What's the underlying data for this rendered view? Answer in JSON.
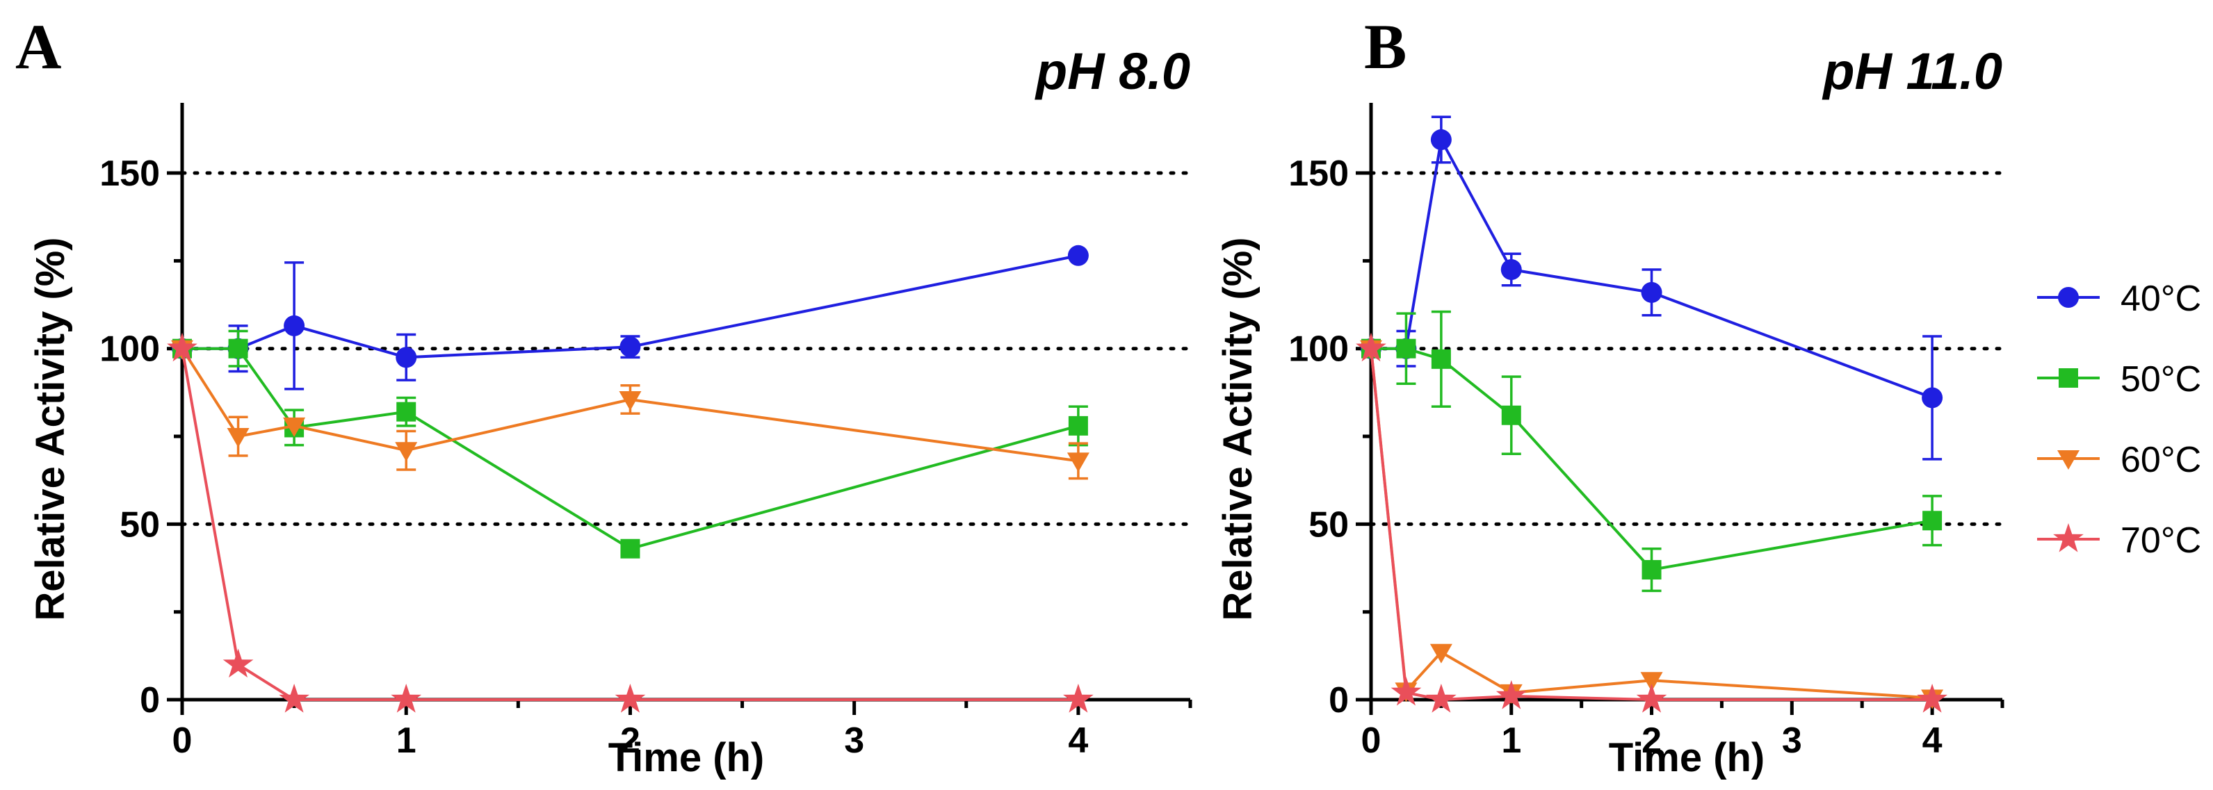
{
  "chart_data": [
    {
      "type": "line",
      "panel_label": "A",
      "title": "pH 8.0",
      "xlabel": "Time (h)",
      "ylabel": "Relative Activity (%)",
      "xlim": [
        0,
        4.5
      ],
      "ylim": [
        0,
        170
      ],
      "xticks": [
        0,
        1,
        2,
        3,
        4
      ],
      "yticks": [
        0,
        50,
        100,
        150
      ],
      "reference_lines": [
        50,
        100,
        150
      ],
      "x": [
        0,
        0.25,
        0.5,
        1,
        2,
        4
      ],
      "series": [
        {
          "name": "40°C",
          "color": "#1f1fe0",
          "marker": "circle",
          "values": [
            100,
            100,
            106.5,
            97.5,
            100.5,
            126.5
          ],
          "errors": [
            0,
            6.5,
            18,
            6.5,
            3,
            0
          ]
        },
        {
          "name": "50°C",
          "color": "#22bb22",
          "marker": "square",
          "values": [
            100,
            100,
            77.5,
            82,
            43,
            78
          ],
          "errors": [
            0,
            5,
            5,
            4,
            0,
            5.5
          ]
        },
        {
          "name": "60°C",
          "color": "#ee7a22",
          "marker": "triangle-down",
          "values": [
            100,
            75,
            78,
            71,
            85.5,
            68
          ],
          "errors": [
            0,
            5.5,
            0,
            5.5,
            4,
            5
          ]
        },
        {
          "name": "70°C",
          "color": "#e94f5a",
          "marker": "star",
          "values": [
            100,
            10,
            0,
            0,
            0,
            0
          ],
          "errors": [
            0,
            0,
            0,
            0,
            0,
            0
          ]
        }
      ]
    },
    {
      "type": "line",
      "panel_label": "B",
      "title": "pH 11.0",
      "xlabel": "Time (h)",
      "ylabel": "Relative Activity (%)",
      "xlim": [
        0,
        4.5
      ],
      "ylim": [
        0,
        170
      ],
      "xticks": [
        0,
        1,
        2,
        3,
        4
      ],
      "yticks": [
        0,
        50,
        100,
        150
      ],
      "reference_lines": [
        50,
        100,
        150
      ],
      "x": [
        0,
        0.25,
        0.5,
        1,
        2,
        4
      ],
      "series": [
        {
          "name": "40°C",
          "color": "#1f1fe0",
          "marker": "circle",
          "values": [
            100,
            100,
            159.5,
            122.5,
            116,
            86
          ],
          "errors": [
            0,
            5,
            6.5,
            4.5,
            6.5,
            17.5
          ]
        },
        {
          "name": "50°C",
          "color": "#22bb22",
          "marker": "square",
          "values": [
            100,
            100,
            97,
            81,
            37,
            51
          ],
          "errors": [
            0,
            10,
            13.5,
            11,
            6,
            7
          ]
        },
        {
          "name": "60°C",
          "color": "#ee7a22",
          "marker": "triangle-down",
          "values": [
            100,
            2.5,
            13.5,
            2,
            5.5,
            0.5
          ],
          "errors": [
            0,
            0,
            0,
            0,
            0,
            0
          ]
        },
        {
          "name": "70°C",
          "color": "#e94f5a",
          "marker": "star",
          "values": [
            100,
            2,
            0,
            1,
            0,
            0
          ],
          "errors": [
            0,
            0,
            0,
            0,
            0,
            0
          ]
        }
      ]
    }
  ],
  "legend": {
    "placement": "right",
    "entries": [
      {
        "label": "40°C",
        "color": "#1f1fe0",
        "marker": "circle"
      },
      {
        "label": "50°C",
        "color": "#22bb22",
        "marker": "square"
      },
      {
        "label": "60°C",
        "color": "#ee7a22",
        "marker": "triangle-down"
      },
      {
        "label": "70°C",
        "color": "#e94f5a",
        "marker": "star"
      }
    ]
  }
}
